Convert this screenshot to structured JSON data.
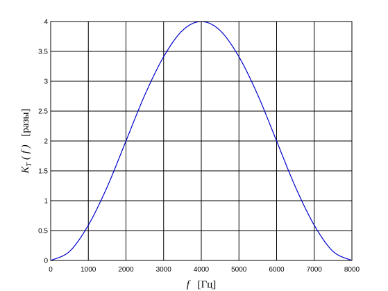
{
  "chart_data": {
    "type": "line",
    "xlabel": {
      "var": "f",
      "unit": "[Гц]"
    },
    "ylabel": {
      "var": "K",
      "sub": "T",
      "arg": "( f )",
      "unit": "[разы]"
    },
    "xlim": [
      0,
      8000
    ],
    "ylim": [
      0,
      4
    ],
    "xticks": [
      0,
      1000,
      2000,
      3000,
      4000,
      5000,
      6000,
      7000,
      8000
    ],
    "yticks": [
      0,
      0.5,
      1,
      1.5,
      2,
      2.5,
      3,
      3.5,
      4
    ],
    "grid": true,
    "line_color": "#0000cc",
    "series": [
      {
        "x": [
          0,
          500,
          1000,
          1500,
          2000,
          2500,
          3000,
          3500,
          4000,
          4500,
          5000,
          5500,
          6000,
          6500,
          7000,
          7500,
          8000
        ],
        "y": [
          0,
          0.15,
          0.59,
          1.23,
          2.0,
          2.77,
          3.41,
          3.85,
          4.0,
          3.85,
          3.41,
          2.77,
          2.0,
          1.23,
          0.59,
          0.15,
          0
        ]
      }
    ]
  }
}
